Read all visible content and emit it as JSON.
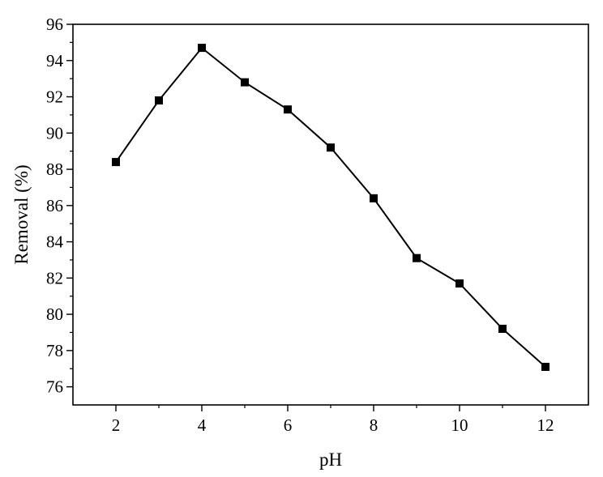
{
  "chart_data": {
    "type": "line",
    "title": "",
    "xlabel": "pH",
    "ylabel": "Removal (%)",
    "xlim": [
      1,
      13
    ],
    "ylim": [
      75,
      96
    ],
    "xticks": [
      2,
      4,
      6,
      8,
      10,
      12
    ],
    "yticks": [
      76,
      78,
      80,
      82,
      84,
      86,
      88,
      90,
      92,
      94,
      96
    ],
    "x_minor_ticks": [
      3,
      5,
      7,
      9,
      11
    ],
    "y_minor_ticks": [
      77,
      79,
      81,
      83,
      85,
      87,
      89,
      91,
      93,
      95
    ],
    "grid": false,
    "legend": "none",
    "marker": "square",
    "colors": {
      "line": "#000000",
      "marker": "#000000",
      "axes": "#000000"
    },
    "series": [
      {
        "x": [
          2,
          3,
          4,
          5,
          6,
          7,
          8,
          9,
          10,
          11,
          12
        ],
        "values": [
          88.4,
          91.8,
          94.7,
          92.8,
          91.3,
          89.2,
          86.4,
          83.1,
          81.7,
          79.2,
          77.1
        ]
      }
    ]
  }
}
